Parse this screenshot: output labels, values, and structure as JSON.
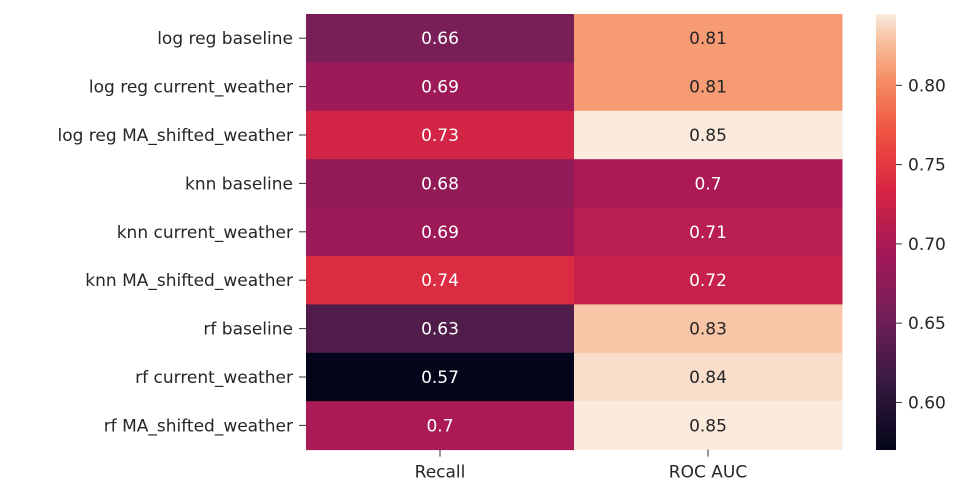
{
  "chart_data": {
    "type": "heatmap",
    "title": "",
    "xlabel": "",
    "ylabel": "",
    "columns": [
      "Recall",
      "ROC AUC"
    ],
    "rows": [
      "log reg baseline",
      "log reg current_weather",
      "log reg MA_shifted_weather",
      "knn baseline",
      "knn current_weather",
      "knn MA_shifted_weather",
      "rf baseline",
      "rf current_weather",
      "rf MA_shifted_weather"
    ],
    "values": [
      [
        0.66,
        0.81
      ],
      [
        0.69,
        0.81
      ],
      [
        0.73,
        0.85
      ],
      [
        0.68,
        0.7
      ],
      [
        0.69,
        0.71
      ],
      [
        0.74,
        0.72
      ],
      [
        0.63,
        0.83
      ],
      [
        0.57,
        0.84
      ],
      [
        0.7,
        0.85
      ]
    ],
    "cell_labels": [
      [
        "0.66",
        "0.81"
      ],
      [
        "0.69",
        "0.81"
      ],
      [
        "0.73",
        "0.85"
      ],
      [
        "0.68",
        "0.7"
      ],
      [
        "0.69",
        "0.71"
      ],
      [
        "0.74",
        "0.72"
      ],
      [
        "0.63",
        "0.83"
      ],
      [
        "0.57",
        "0.84"
      ],
      [
        "0.7",
        "0.85"
      ]
    ],
    "colormap": "rocket",
    "color_range": [
      0.57,
      0.845
    ],
    "colorbar": {
      "ticks": [
        0.6,
        0.65,
        0.7,
        0.75,
        0.8
      ],
      "tick_labels": [
        "0.60",
        "0.65",
        "0.70",
        "0.75",
        "0.80"
      ]
    },
    "grid": false,
    "legend": "colorbar-right"
  }
}
